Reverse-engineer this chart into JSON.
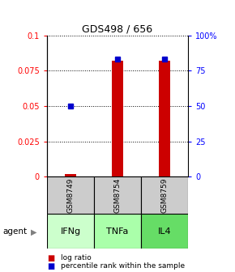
{
  "title": "GDS498 / 656",
  "samples": [
    "GSM8749",
    "GSM8754",
    "GSM8759"
  ],
  "agents": [
    "IFNg",
    "TNFa",
    "IL4"
  ],
  "log_ratio": [
    0.002,
    0.082,
    0.082
  ],
  "percentile_rank": [
    50,
    83,
    83
  ],
  "ylim_left": [
    0,
    0.1
  ],
  "ylim_right": [
    0,
    100
  ],
  "yticks_left": [
    0,
    0.025,
    0.05,
    0.075,
    0.1
  ],
  "yticks_right": [
    0,
    25,
    50,
    75,
    100
  ],
  "ytick_labels_left": [
    "0",
    "0.025",
    "0.05",
    "0.075",
    "0.1"
  ],
  "ytick_labels_right": [
    "0",
    "25",
    "50",
    "75",
    "100%"
  ],
  "bar_color": "#cc0000",
  "dot_color": "#0000cc",
  "agent_colors": [
    "#ccffcc",
    "#aaffaa",
    "#66dd66"
  ],
  "sample_box_color": "#cccccc",
  "bar_width": 0.25,
  "legend_log_ratio": "log ratio",
  "legend_percentile": "percentile rank within the sample",
  "agent_label": "agent"
}
